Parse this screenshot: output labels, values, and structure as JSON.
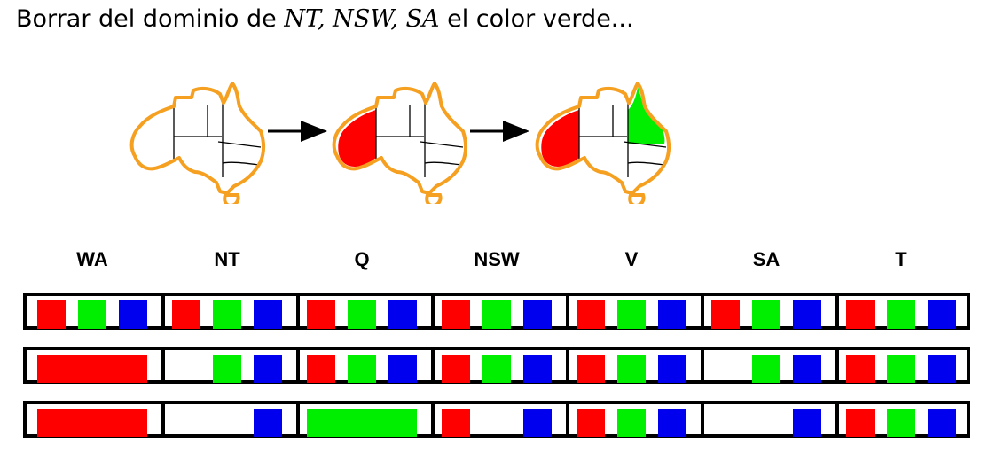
{
  "title": {
    "prefix": "Borrar del dominio de ",
    "vars": "NT, NSW, SA",
    "suffix": " el color verde..."
  },
  "colors": {
    "red": "#ff0000",
    "green": "#00ee00",
    "blue": "#0000ee",
    "map_outline": "#f5a020",
    "border": "#000000"
  },
  "regions": [
    "WA",
    "NT",
    "Q",
    "NSW",
    "V",
    "SA",
    "T"
  ],
  "domain_rows": [
    [
      [
        "R",
        "G",
        "B"
      ],
      [
        "R",
        "G",
        "B"
      ],
      [
        "R",
        "G",
        "B"
      ],
      [
        "R",
        "G",
        "B"
      ],
      [
        "R",
        "G",
        "B"
      ],
      [
        "R",
        "G",
        "B"
      ],
      [
        "R",
        "G",
        "B"
      ]
    ],
    [
      [
        "R*"
      ],
      [
        "G",
        "B"
      ],
      [
        "R",
        "G",
        "B"
      ],
      [
        "R",
        "G",
        "B"
      ],
      [
        "R",
        "G",
        "B"
      ],
      [
        "G",
        "B"
      ],
      [
        "R",
        "G",
        "B"
      ]
    ],
    [
      [
        "R*"
      ],
      [
        "B"
      ],
      [
        "G*"
      ],
      [
        "R",
        "B"
      ],
      [
        "R",
        "G",
        "B"
      ],
      [
        "B"
      ],
      [
        "R",
        "G",
        "B"
      ]
    ]
  ],
  "maps": [
    {
      "name": "australia-map-initial",
      "fill_wa": "",
      "fill_q": ""
    },
    {
      "name": "australia-map-wa-red",
      "fill_wa": "red",
      "fill_q": ""
    },
    {
      "name": "australia-map-wa-red-q-green",
      "fill_wa": "red",
      "fill_q": "green"
    }
  ]
}
